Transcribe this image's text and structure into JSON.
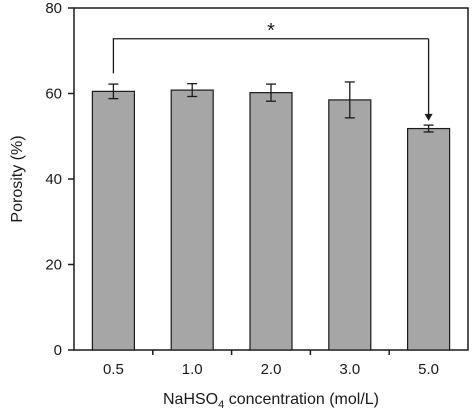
{
  "chart_data": {
    "type": "bar",
    "categories": [
      "0.5",
      "1.0",
      "2.0",
      "3.0",
      "5.0"
    ],
    "values": [
      60.5,
      60.8,
      60.2,
      58.5,
      51.8
    ],
    "errors": [
      1.7,
      1.5,
      2.0,
      4.2,
      0.8
    ],
    "ylabel": "Porosity (%)",
    "xlabel_main": "NaHSO",
    "xlabel_sub": "4",
    "xlabel_rest": " concentration (mol/L)",
    "ylim": [
      0,
      80
    ],
    "yticks": [
      "0",
      "20",
      "40",
      "60",
      "80"
    ],
    "significance": {
      "from": "0.5",
      "to": "5.0",
      "label": "*"
    },
    "bar_color": "#a6a6a6",
    "grid": false
  }
}
